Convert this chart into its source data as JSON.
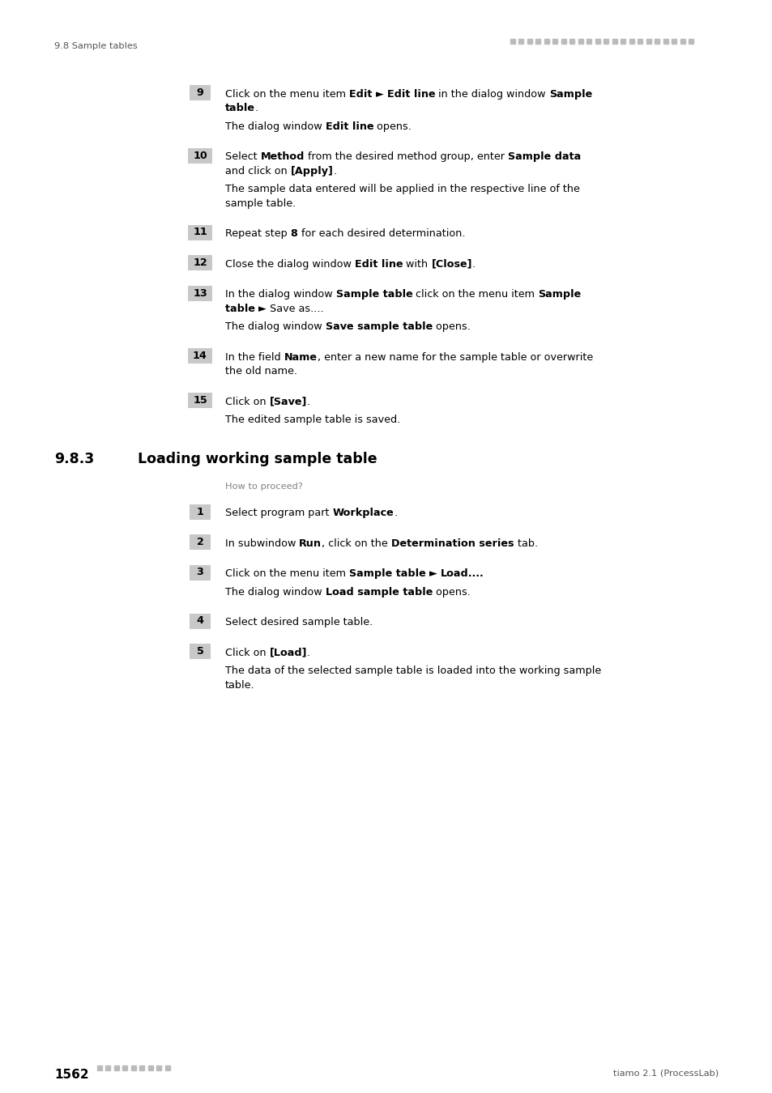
{
  "bg_color": "#ffffff",
  "header_left": "9.8 Sample tables",
  "footer_left_number": "1562",
  "footer_right": "tiamo 2.1 (ProcessLab)",
  "section_number": "9.8.3",
  "section_title": "Loading working sample table",
  "how_to": "How to proceed?",
  "num_box_color": "#c8c8c8",
  "text_color": "#000000",
  "gray_text_color": "#808080",
  "header_color": "#555555",
  "body_fontsize": 9.2,
  "small_fontsize": 8.2,
  "section_fontsize": 12.5,
  "footer_num_fontsize": 11.0
}
